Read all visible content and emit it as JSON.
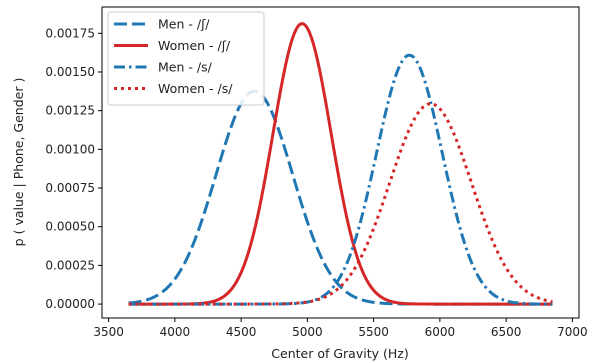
{
  "chart_data": {
    "type": "line",
    "title": "",
    "xlabel": "Center of Gravity (Hz)",
    "ylabel": "p ( value | Phone, Gender )",
    "xlim": [
      3450,
      7050
    ],
    "ylim": [
      -9e-05,
      0.00192
    ],
    "x_ticks": [
      3500,
      4000,
      4500,
      5000,
      5500,
      6000,
      6500,
      7000
    ],
    "x_tick_labels": [
      "3500",
      "4000",
      "4500",
      "5000",
      "5500",
      "6000",
      "6500",
      "7000"
    ],
    "y_ticks": [
      0,
      0.00025,
      0.0005,
      0.00075,
      0.001,
      0.00125,
      0.0015,
      0.00175
    ],
    "y_tick_labels": [
      "0.00000",
      "0.00025",
      "0.00050",
      "0.00075",
      "0.00100",
      "0.00125",
      "0.00150",
      "0.00175"
    ],
    "grid": false,
    "legend_position": "top-left",
    "x_range": [
      3650,
      6850
    ],
    "series": [
      {
        "name": "Men - /ʃ/",
        "distribution": "normal",
        "mean": 4600,
        "sd": 290,
        "peak": 0.001376,
        "color": "#1f77b4",
        "dash": "dashed"
      },
      {
        "name": "Women - /ʃ/",
        "distribution": "normal",
        "mean": 4960,
        "sd": 220,
        "peak": 0.001813,
        "color": "#d62728",
        "dash": "solid"
      },
      {
        "name": "Men - /s/",
        "distribution": "normal",
        "mean": 5770,
        "sd": 248,
        "peak": 0.001609,
        "color": "#1f77b4",
        "dash": "dashdot"
      },
      {
        "name": "Women - /s/",
        "distribution": "normal",
        "mean": 5930,
        "sd": 308,
        "peak": 0.001295,
        "color": "#d62728",
        "dash": "dotted"
      }
    ]
  }
}
